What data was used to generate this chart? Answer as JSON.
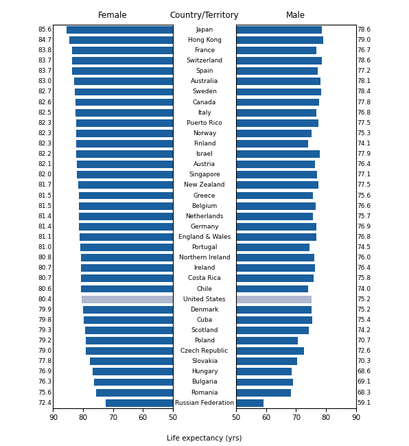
{
  "countries": [
    "Japan",
    "Hong Kong",
    "France",
    "Switzerland",
    "Spain",
    "Australia",
    "Sweden",
    "Canada",
    "Italy",
    "Puerto Rico",
    "Norway",
    "Finland",
    "Israel",
    "Austria",
    "Singapore",
    "New Zealand",
    "Greece",
    "Belgium",
    "Netherlands",
    "Germany",
    "England & Wales",
    "Portugal",
    "Northern Ireland",
    "Ireland",
    "Costa Rica",
    "Chile",
    "United States",
    "Denmark",
    "Cuba",
    "Scotland",
    "Poland",
    "Czech Republic",
    "Slovakia",
    "Hungary",
    "Bulgaria",
    "Romania",
    "Russian Federation"
  ],
  "female": [
    85.6,
    84.7,
    83.8,
    83.7,
    83.7,
    83.0,
    82.7,
    82.6,
    82.5,
    82.3,
    82.3,
    82.3,
    82.2,
    82.1,
    82.0,
    81.7,
    81.5,
    81.5,
    81.4,
    81.4,
    81.1,
    81.0,
    80.8,
    80.7,
    80.7,
    80.6,
    80.4,
    79.9,
    79.8,
    79.3,
    79.2,
    79.0,
    77.8,
    76.9,
    76.3,
    75.6,
    72.4
  ],
  "male": [
    78.6,
    79.0,
    76.7,
    78.6,
    77.2,
    78.1,
    78.4,
    77.8,
    76.8,
    77.5,
    75.3,
    74.1,
    77.9,
    76.4,
    77.1,
    77.5,
    75.6,
    76.6,
    75.7,
    76.9,
    76.8,
    74.5,
    76.0,
    76.4,
    75.8,
    74.0,
    75.2,
    75.2,
    75.4,
    74.2,
    70.7,
    72.6,
    70.3,
    68.6,
    69.1,
    68.3,
    59.1
  ],
  "us_index": 26,
  "bar_color": "#1a5f9e",
  "us_bar_color": "#b0b8d0",
  "axis_min": 50,
  "axis_max": 90,
  "xlabel": "Life expectancy (yrs)",
  "title_female": "Female",
  "title_country": "Country/Territory",
  "title_male": "Male",
  "bar_height": 0.72,
  "label_fontsize": 6.5,
  "tick_fontsize": 7.5,
  "header_fontsize": 8.5,
  "country_fontsize": 6.5
}
